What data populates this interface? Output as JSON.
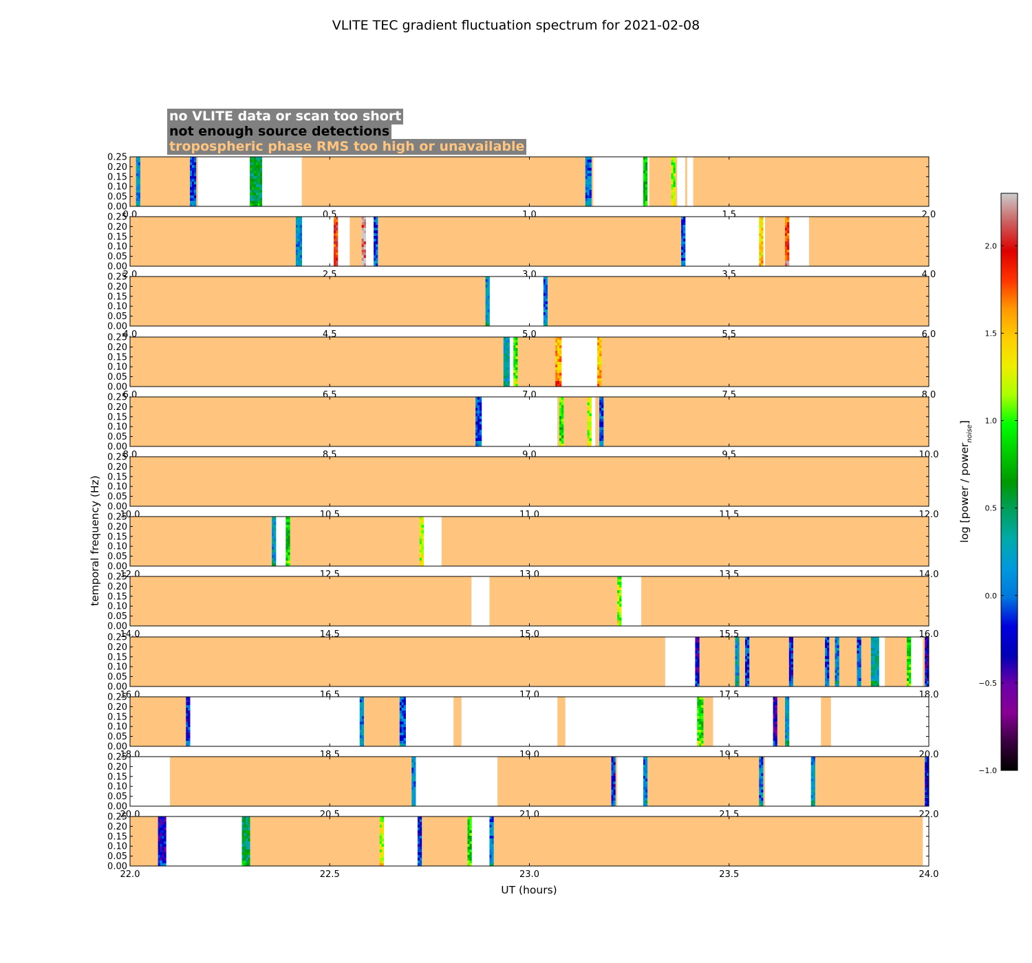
{
  "chart_data": {
    "type": "heatmap",
    "title": "VLITE TEC gradient fluctuation spectrum for 2021-02-08",
    "xlabel": "UT (hours)",
    "ylabel": "temporal frequency (Hz)",
    "ylim": [
      0,
      0.25
    ],
    "yticks": [
      "0.00",
      "0.05",
      "0.10",
      "0.15",
      "0.20",
      "0.25"
    ],
    "colorbar": {
      "label": "log [power / power",
      "label_sub": "noise",
      "label_end": "]",
      "range": [
        -1.0,
        2.3
      ],
      "ticks": [
        "−1.0",
        "−0.5",
        "0.0",
        "0.5",
        "1.0",
        "1.5",
        "2.0"
      ],
      "tick_values": [
        -1.0,
        -0.5,
        0.0,
        0.5,
        1.0,
        1.5,
        2.0
      ]
    },
    "legend": [
      {
        "text": "no VLITE data or scan too short",
        "color": "#ffffff"
      },
      {
        "text": "not enough source detections",
        "color": "#000000"
      },
      {
        "text": "tropospheric phase RMS too high or unavailable",
        "color": "#ffc57f"
      }
    ],
    "colors": {
      "flag": "#ffc57f",
      "gap": "#ffffff"
    },
    "panels": [
      {
        "xlim": [
          0,
          2
        ],
        "xticks": [
          "0.0",
          "0.5",
          "1.0",
          "1.5",
          "2.0"
        ],
        "gaps": [
          [
            0.17,
            0.3
          ],
          [
            0.33,
            0.43
          ],
          [
            1.16,
            1.3
          ],
          [
            1.37,
            1.39
          ],
          [
            1.395,
            1.41
          ]
        ],
        "scans": [
          [
            0.015,
            0.025,
            0.1
          ],
          [
            0.15,
            0.165,
            -0.1
          ],
          [
            0.3,
            0.33,
            0.55
          ],
          [
            1.14,
            1.155,
            0.0
          ],
          [
            1.285,
            1.295,
            0.8
          ],
          [
            1.355,
            1.365,
            1.1
          ]
        ]
      },
      {
        "xlim": [
          2,
          4
        ],
        "xticks": [
          "2.0",
          "2.5",
          "3.0",
          "3.5",
          "4.0"
        ],
        "gaps": [
          [
            2.43,
            2.55
          ],
          [
            2.59,
            2.61
          ],
          [
            3.39,
            3.59
          ],
          [
            3.65,
            3.7
          ]
        ],
        "scans": [
          [
            2.415,
            2.43,
            0.15
          ],
          [
            2.51,
            2.52,
            1.9
          ],
          [
            2.58,
            2.59,
            2.2
          ],
          [
            2.61,
            2.62,
            -0.1
          ],
          [
            3.38,
            3.39,
            -0.05
          ],
          [
            3.575,
            3.585,
            1.4
          ],
          [
            3.64,
            3.65,
            1.8
          ]
        ]
      },
      {
        "xlim": [
          4,
          6
        ],
        "xticks": [
          "4.0",
          "4.5",
          "5.0",
          "5.5",
          "6.0"
        ],
        "gaps": [
          [
            4.9,
            5.04
          ]
        ],
        "scans": [
          [
            4.89,
            4.9,
            0.15
          ],
          [
            5.035,
            5.045,
            0.0
          ]
        ]
      },
      {
        "xlim": [
          6,
          8
        ],
        "xticks": [
          "6.0",
          "6.5",
          "7.0",
          "7.5",
          "8.0"
        ],
        "gaps": [
          [
            6.95,
            6.96
          ],
          [
            7.08,
            7.17
          ]
        ],
        "scans": [
          [
            6.935,
            6.95,
            0.3
          ],
          [
            6.96,
            6.97,
            1.0
          ],
          [
            7.065,
            7.08,
            1.6
          ],
          [
            7.17,
            7.18,
            1.5
          ]
        ]
      },
      {
        "xlim": [
          8,
          10
        ],
        "xticks": [
          "8.0",
          "8.5",
          "9.0",
          "9.5",
          "10.0"
        ],
        "gaps": [
          [
            8.88,
            9.07
          ],
          [
            9.155,
            9.165
          ]
        ],
        "scans": [
          [
            8.865,
            8.88,
            -0.1
          ],
          [
            9.075,
            9.085,
            0.9
          ],
          [
            9.145,
            9.155,
            1.2
          ],
          [
            9.175,
            9.185,
            -0.1
          ]
        ]
      },
      {
        "xlim": [
          10,
          12
        ],
        "xticks": [
          "10.0",
          "10.5",
          "11.0",
          "11.5",
          "12.0"
        ],
        "gaps": [],
        "scans": []
      },
      {
        "xlim": [
          12,
          14
        ],
        "xticks": [
          "12.0",
          "12.5",
          "13.0",
          "13.5",
          "14.0"
        ],
        "gaps": [
          [
            12.365,
            12.39
          ],
          [
            12.735,
            12.78
          ]
        ],
        "scans": [
          [
            12.355,
            12.365,
            0.2
          ],
          [
            12.39,
            12.4,
            0.8
          ],
          [
            12.725,
            12.735,
            1.2
          ]
        ]
      },
      {
        "xlim": [
          14,
          16
        ],
        "xticks": [
          "14.0",
          "14.5",
          "15.0",
          "15.5",
          "16.0"
        ],
        "gaps": [
          [
            14.855,
            14.9
          ],
          [
            15.23,
            15.28
          ]
        ],
        "scans": [
          [
            15.22,
            15.23,
            1.1
          ]
        ]
      },
      {
        "xlim": [
          16,
          18
        ],
        "xticks": [
          "16.0",
          "16.5",
          "17.0",
          "17.5",
          "18.0"
        ],
        "gaps": [
          [
            17.34,
            17.42
          ],
          [
            17.86,
            17.89
          ],
          [
            17.95,
            17.985
          ]
        ],
        "scans": [
          [
            17.415,
            17.425,
            -0.3
          ],
          [
            17.515,
            17.525,
            0.2
          ],
          [
            17.54,
            17.55,
            -0.1
          ],
          [
            17.65,
            17.66,
            -0.2
          ],
          [
            17.74,
            17.75,
            -0.1
          ],
          [
            17.765,
            17.775,
            0.1
          ],
          [
            17.82,
            17.83,
            -0.05
          ],
          [
            17.855,
            17.875,
            0.3
          ],
          [
            17.945,
            17.955,
            0.9
          ],
          [
            17.99,
            18.0,
            -0.3
          ]
        ]
      },
      {
        "xlim": [
          18,
          20
        ],
        "xticks": [
          "18.0",
          "18.5",
          "19.0",
          "19.5",
          "20.0"
        ],
        "gaps": [
          [
            18.15,
            18.58
          ],
          [
            18.69,
            18.81
          ],
          [
            18.83,
            19.07
          ],
          [
            19.09,
            19.42
          ],
          [
            19.46,
            19.61
          ],
          [
            19.64,
            19.73
          ],
          [
            19.755,
            20
          ]
        ],
        "scans": [
          [
            18.14,
            18.15,
            -0.2
          ],
          [
            18.575,
            18.585,
            0.1
          ],
          [
            18.675,
            18.69,
            -0.05
          ],
          [
            19.42,
            19.435,
            0.9
          ],
          [
            19.61,
            19.62,
            -0.4
          ],
          [
            19.64,
            19.65,
            0.2
          ]
        ]
      },
      {
        "xlim": [
          20,
          22
        ],
        "xticks": [
          "20.0",
          "20.5",
          "21.0",
          "21.5",
          "22.0"
        ],
        "gaps": [
          [
            20,
            20.1
          ],
          [
            20.71,
            20.92
          ],
          [
            21.22,
            21.29
          ],
          [
            21.59,
            21.71
          ]
        ],
        "scans": [
          [
            20.705,
            20.715,
            0.1
          ],
          [
            21.205,
            21.215,
            -0.2
          ],
          [
            21.285,
            21.295,
            0.1
          ],
          [
            21.575,
            21.585,
            0.05
          ],
          [
            21.705,
            21.715,
            0.15
          ],
          [
            21.99,
            22.0,
            -0.2
          ]
        ]
      },
      {
        "xlim": [
          22,
          24
        ],
        "xticks": [
          "22.0",
          "22.5",
          "23.0",
          "23.5",
          "24.0"
        ],
        "gaps": [
          [
            22.09,
            22.28
          ],
          [
            22.635,
            22.73
          ],
          [
            22.855,
            22.91
          ],
          [
            23.985,
            24
          ]
        ],
        "scans": [
          [
            22.07,
            22.09,
            -0.3
          ],
          [
            22.28,
            22.3,
            0.5
          ],
          [
            22.625,
            22.635,
            1.2
          ],
          [
            22.72,
            22.73,
            -0.2
          ],
          [
            22.845,
            22.855,
            0.9
          ],
          [
            22.9,
            22.91,
            0.05
          ]
        ]
      }
    ]
  }
}
